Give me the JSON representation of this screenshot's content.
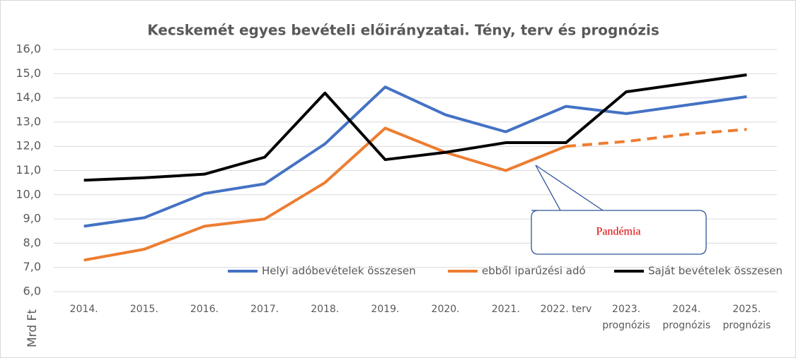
{
  "chart_data": {
    "type": "line",
    "title": "Kecskemét egyes bevételi előirányzatai. Tény, terv és prognózis",
    "y_axis_label": "Mrd Ft",
    "categories": [
      "2014.",
      "2015.",
      "2016.",
      "2017.",
      "2018.",
      "2019.",
      "2020.",
      "2021.",
      "2022. terv",
      "2023.\nprognózis",
      "2024.\nprognózis",
      "2025.\nprognózis"
    ],
    "series": [
      {
        "name": "Helyi adóbevételek összesen",
        "color": "#4472c4",
        "values": [
          8.7,
          9.05,
          10.05,
          10.45,
          12.1,
          14.45,
          13.3,
          12.6,
          13.65,
          13.35,
          13.7,
          14.05
        ]
      },
      {
        "name": "ebből iparűzési adó",
        "color": "#ed7d31",
        "dashed_from": 8,
        "values": [
          7.3,
          7.75,
          8.7,
          9.0,
          10.5,
          12.75,
          11.75,
          11.0,
          12.0,
          12.2,
          12.5,
          12.7
        ]
      },
      {
        "name": "Saját bevételek összesen",
        "color": "#000000",
        "values": [
          10.6,
          10.7,
          10.85,
          11.55,
          14.2,
          11.45,
          11.75,
          12.15,
          12.15,
          14.25,
          14.6,
          14.95
        ]
      }
    ],
    "ylim": [
      6,
      16
    ],
    "yticks": [
      {
        "value": 6,
        "label": "6,0"
      },
      {
        "value": 7,
        "label": "7,0"
      },
      {
        "value": 8,
        "label": "8,0"
      },
      {
        "value": 9,
        "label": "9,0"
      },
      {
        "value": 10,
        "label": "10,0"
      },
      {
        "value": 11,
        "label": "11,0"
      },
      {
        "value": 12,
        "label": "12,0"
      },
      {
        "value": 13,
        "label": "13,0"
      },
      {
        "value": 14,
        "label": "14,0"
      },
      {
        "value": 15,
        "label": "15,0"
      },
      {
        "value": 16,
        "label": "16,0"
      }
    ],
    "grid": true,
    "legend": "bottom",
    "annotation": "Pandémia"
  }
}
